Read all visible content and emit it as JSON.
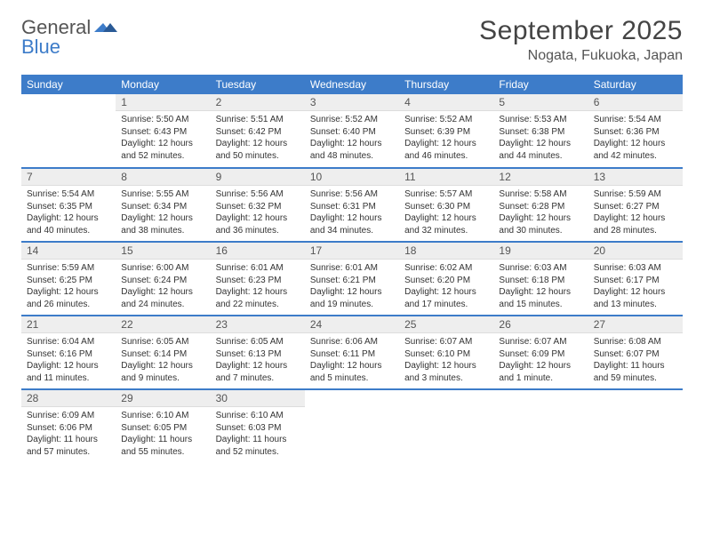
{
  "brand": {
    "part1": "General",
    "part2": "Blue"
  },
  "title": "September 2025",
  "location": "Nogata, Fukuoka, Japan",
  "colors": {
    "header_bg": "#3d7cc9",
    "header_text": "#ffffff",
    "daynum_bg": "#eeeeee",
    "divider": "#3d7cc9",
    "body_text": "#333333",
    "background": "#ffffff"
  },
  "typography": {
    "title_fontsize": 30,
    "location_fontsize": 16,
    "header_fontsize": 12,
    "daynum_fontsize": 12,
    "content_fontsize": 10
  },
  "day_headers": [
    "Sunday",
    "Monday",
    "Tuesday",
    "Wednesday",
    "Thursday",
    "Friday",
    "Saturday"
  ],
  "weeks": [
    [
      null,
      {
        "n": "1",
        "sr": "Sunrise: 5:50 AM",
        "ss": "Sunset: 6:43 PM",
        "dl": "Daylight: 12 hours and 52 minutes."
      },
      {
        "n": "2",
        "sr": "Sunrise: 5:51 AM",
        "ss": "Sunset: 6:42 PM",
        "dl": "Daylight: 12 hours and 50 minutes."
      },
      {
        "n": "3",
        "sr": "Sunrise: 5:52 AM",
        "ss": "Sunset: 6:40 PM",
        "dl": "Daylight: 12 hours and 48 minutes."
      },
      {
        "n": "4",
        "sr": "Sunrise: 5:52 AM",
        "ss": "Sunset: 6:39 PM",
        "dl": "Daylight: 12 hours and 46 minutes."
      },
      {
        "n": "5",
        "sr": "Sunrise: 5:53 AM",
        "ss": "Sunset: 6:38 PM",
        "dl": "Daylight: 12 hours and 44 minutes."
      },
      {
        "n": "6",
        "sr": "Sunrise: 5:54 AM",
        "ss": "Sunset: 6:36 PM",
        "dl": "Daylight: 12 hours and 42 minutes."
      }
    ],
    [
      {
        "n": "7",
        "sr": "Sunrise: 5:54 AM",
        "ss": "Sunset: 6:35 PM",
        "dl": "Daylight: 12 hours and 40 minutes."
      },
      {
        "n": "8",
        "sr": "Sunrise: 5:55 AM",
        "ss": "Sunset: 6:34 PM",
        "dl": "Daylight: 12 hours and 38 minutes."
      },
      {
        "n": "9",
        "sr": "Sunrise: 5:56 AM",
        "ss": "Sunset: 6:32 PM",
        "dl": "Daylight: 12 hours and 36 minutes."
      },
      {
        "n": "10",
        "sr": "Sunrise: 5:56 AM",
        "ss": "Sunset: 6:31 PM",
        "dl": "Daylight: 12 hours and 34 minutes."
      },
      {
        "n": "11",
        "sr": "Sunrise: 5:57 AM",
        "ss": "Sunset: 6:30 PM",
        "dl": "Daylight: 12 hours and 32 minutes."
      },
      {
        "n": "12",
        "sr": "Sunrise: 5:58 AM",
        "ss": "Sunset: 6:28 PM",
        "dl": "Daylight: 12 hours and 30 minutes."
      },
      {
        "n": "13",
        "sr": "Sunrise: 5:59 AM",
        "ss": "Sunset: 6:27 PM",
        "dl": "Daylight: 12 hours and 28 minutes."
      }
    ],
    [
      {
        "n": "14",
        "sr": "Sunrise: 5:59 AM",
        "ss": "Sunset: 6:25 PM",
        "dl": "Daylight: 12 hours and 26 minutes."
      },
      {
        "n": "15",
        "sr": "Sunrise: 6:00 AM",
        "ss": "Sunset: 6:24 PM",
        "dl": "Daylight: 12 hours and 24 minutes."
      },
      {
        "n": "16",
        "sr": "Sunrise: 6:01 AM",
        "ss": "Sunset: 6:23 PM",
        "dl": "Daylight: 12 hours and 22 minutes."
      },
      {
        "n": "17",
        "sr": "Sunrise: 6:01 AM",
        "ss": "Sunset: 6:21 PM",
        "dl": "Daylight: 12 hours and 19 minutes."
      },
      {
        "n": "18",
        "sr": "Sunrise: 6:02 AM",
        "ss": "Sunset: 6:20 PM",
        "dl": "Daylight: 12 hours and 17 minutes."
      },
      {
        "n": "19",
        "sr": "Sunrise: 6:03 AM",
        "ss": "Sunset: 6:18 PM",
        "dl": "Daylight: 12 hours and 15 minutes."
      },
      {
        "n": "20",
        "sr": "Sunrise: 6:03 AM",
        "ss": "Sunset: 6:17 PM",
        "dl": "Daylight: 12 hours and 13 minutes."
      }
    ],
    [
      {
        "n": "21",
        "sr": "Sunrise: 6:04 AM",
        "ss": "Sunset: 6:16 PM",
        "dl": "Daylight: 12 hours and 11 minutes."
      },
      {
        "n": "22",
        "sr": "Sunrise: 6:05 AM",
        "ss": "Sunset: 6:14 PM",
        "dl": "Daylight: 12 hours and 9 minutes."
      },
      {
        "n": "23",
        "sr": "Sunrise: 6:05 AM",
        "ss": "Sunset: 6:13 PM",
        "dl": "Daylight: 12 hours and 7 minutes."
      },
      {
        "n": "24",
        "sr": "Sunrise: 6:06 AM",
        "ss": "Sunset: 6:11 PM",
        "dl": "Daylight: 12 hours and 5 minutes."
      },
      {
        "n": "25",
        "sr": "Sunrise: 6:07 AM",
        "ss": "Sunset: 6:10 PM",
        "dl": "Daylight: 12 hours and 3 minutes."
      },
      {
        "n": "26",
        "sr": "Sunrise: 6:07 AM",
        "ss": "Sunset: 6:09 PM",
        "dl": "Daylight: 12 hours and 1 minute."
      },
      {
        "n": "27",
        "sr": "Sunrise: 6:08 AM",
        "ss": "Sunset: 6:07 PM",
        "dl": "Daylight: 11 hours and 59 minutes."
      }
    ],
    [
      {
        "n": "28",
        "sr": "Sunrise: 6:09 AM",
        "ss": "Sunset: 6:06 PM",
        "dl": "Daylight: 11 hours and 57 minutes."
      },
      {
        "n": "29",
        "sr": "Sunrise: 6:10 AM",
        "ss": "Sunset: 6:05 PM",
        "dl": "Daylight: 11 hours and 55 minutes."
      },
      {
        "n": "30",
        "sr": "Sunrise: 6:10 AM",
        "ss": "Sunset: 6:03 PM",
        "dl": "Daylight: 11 hours and 52 minutes."
      },
      null,
      null,
      null,
      null
    ]
  ]
}
